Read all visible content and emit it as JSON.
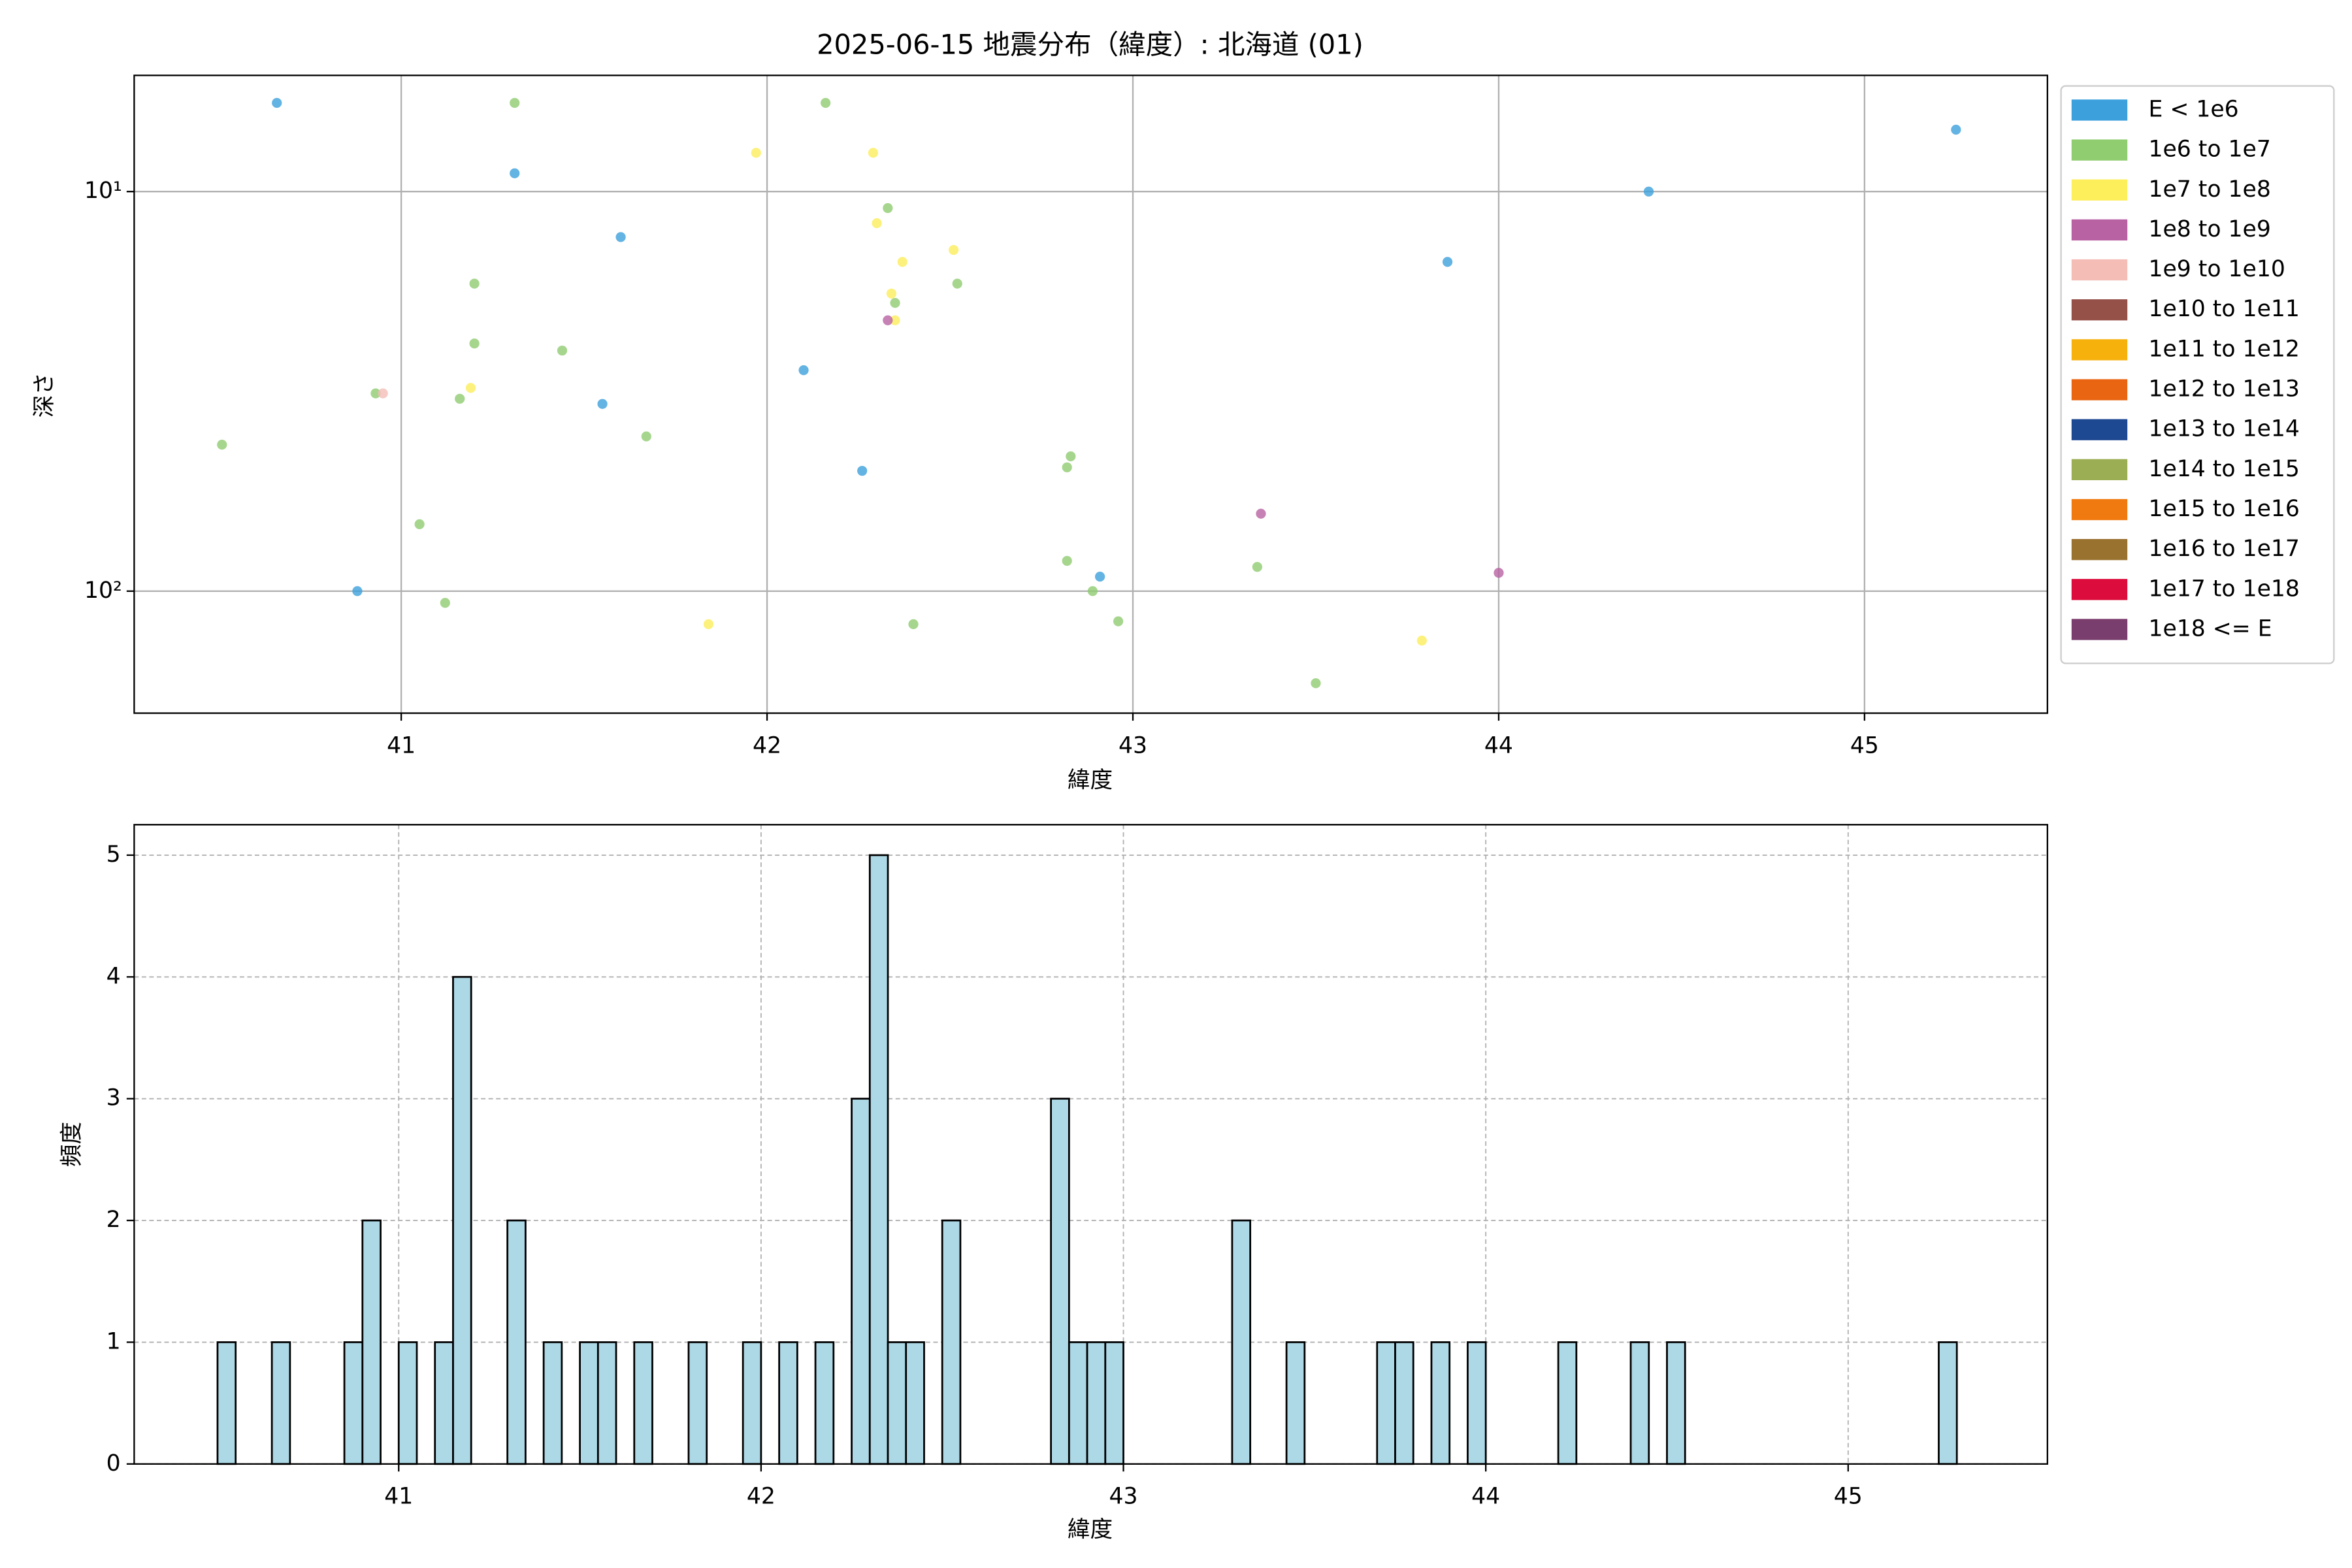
{
  "chart_data": [
    {
      "type": "scatter",
      "title": "2025-06-15 地震分布（緯度）: 北海道 (01)",
      "x_label": "緯度",
      "y_label": "深さ",
      "xlim": [
        40.27,
        45.5
      ],
      "xticks": [
        41,
        42,
        43,
        44,
        45
      ],
      "ylim": [
        5.12,
        202
      ],
      "yscale": "log",
      "invert_y": true,
      "yticks": [
        {
          "value": 10,
          "label": "10¹"
        },
        {
          "value": 100,
          "label": "10²"
        }
      ],
      "grid": true,
      "legend": "outside-right",
      "series": [
        {
          "name": "E < 1e6",
          "color": "#3ca0dc",
          "x": [
            40.66,
            41.31,
            41.6,
            42.1,
            41.55,
            42.26,
            40.88,
            42.91,
            43.86,
            44.41,
            45.25
          ],
          "values": [
            6,
            9,
            13,
            28,
            34,
            50,
            100,
            92,
            15,
            10,
            7
          ]
        },
        {
          "name": "1e6 to 1e7",
          "color": "#90cc70",
          "x": [
            41.31,
            42.16,
            42.33,
            42.35,
            41.2,
            42.52,
            41.2,
            41.44,
            40.93,
            41.16,
            40.51,
            41.67,
            42.83,
            42.82,
            41.05,
            42.82,
            43.34,
            42.89,
            41.12,
            42.4,
            42.96,
            43.5
          ],
          "values": [
            6,
            6,
            11,
            19,
            17,
            17,
            24,
            25,
            32,
            33,
            43,
            41,
            46,
            49,
            68,
            84,
            87,
            100,
            107,
            121,
            119,
            170
          ]
        },
        {
          "name": "1e7 to 1e8",
          "color": "#fdee5c",
          "x": [
            41.97,
            42.29,
            42.3,
            42.37,
            42.51,
            42.34,
            42.35,
            41.19,
            41.84,
            43.79
          ],
          "values": [
            8,
            8,
            12,
            15,
            14,
            18,
            21,
            31,
            121,
            133
          ]
        },
        {
          "name": "1e8 to 1e9",
          "color": "#b862a3",
          "x": [
            42.33,
            43.35,
            44.0
          ],
          "values": [
            21,
            64,
            90
          ]
        },
        {
          "name": "1e9 to 1e10",
          "color": "#f4bdb6",
          "x": [
            40.95
          ],
          "values": [
            32
          ]
        },
        {
          "name": "1e10 to 1e11",
          "color": "#955048",
          "x": [],
          "values": []
        },
        {
          "name": "1e11 to 1e12",
          "color": "#f6b10d",
          "x": [],
          "values": []
        },
        {
          "name": "1e12 to 1e13",
          "color": "#ea6512",
          "x": [],
          "values": []
        },
        {
          "name": "1e13 to 1e14",
          "color": "#1d4892",
          "x": [],
          "values": []
        },
        {
          "name": "1e14 to 1e15",
          "color": "#9cae54",
          "x": [],
          "values": []
        },
        {
          "name": "1e15 to 1e16",
          "color": "#f07a10",
          "x": [],
          "values": []
        },
        {
          "name": "1e16 to 1e17",
          "color": "#9a7230",
          "x": [],
          "values": []
        },
        {
          "name": "1e17 to 1e18",
          "color": "#dc0c3c",
          "x": [],
          "values": []
        },
        {
          "name": "1e18 <= E",
          "color": "#7a3e6e",
          "x": [],
          "values": []
        }
      ]
    },
    {
      "type": "histogram",
      "x_label": "緯度",
      "y_label": "頻度",
      "color": "#add8e6",
      "edgecolor": "#000000",
      "xlim": [
        40.27,
        45.55
      ],
      "xticks": [
        41,
        42,
        43,
        44,
        45
      ],
      "ylim": [
        0,
        5.25
      ],
      "yticks": [
        0,
        1,
        2,
        3,
        4,
        5
      ],
      "grid": true,
      "grid_style": "dashed",
      "bins": [
        40.5,
        40.55,
        40.6,
        40.65,
        40.7,
        40.75,
        40.8,
        40.85,
        40.9,
        40.95,
        41.0,
        41.05,
        41.1,
        41.15,
        41.2,
        41.25,
        41.3,
        41.35,
        41.4,
        41.45,
        41.5,
        41.55,
        41.6,
        41.65,
        41.7,
        41.75,
        41.8,
        41.85,
        41.9,
        41.95,
        42.0,
        42.05,
        42.1,
        42.15,
        42.2,
        42.25,
        42.3,
        42.35,
        42.4,
        42.45,
        42.5,
        42.55,
        42.6,
        42.65,
        42.7,
        42.75,
        42.8,
        42.85,
        42.9,
        42.95,
        43.0,
        43.05,
        43.1,
        43.15,
        43.2,
        43.25,
        43.3,
        43.35,
        43.4,
        43.45,
        43.5,
        43.55,
        43.6,
        43.65,
        43.7,
        43.75,
        43.8,
        43.85,
        43.9,
        43.95,
        44.0,
        44.05,
        44.1,
        44.15,
        44.2,
        44.25,
        44.3,
        44.35,
        44.4,
        44.45,
        44.5,
        44.55,
        44.6,
        44.65,
        44.7,
        44.75,
        44.8,
        44.85,
        44.9,
        44.95,
        45.0,
        45.05,
        45.1,
        45.15,
        45.2,
        45.25,
        45.3
      ],
      "values": [
        1,
        0,
        0,
        1,
        0,
        0,
        0,
        1,
        2,
        0,
        1,
        0,
        1,
        4,
        0,
        0,
        2,
        0,
        1,
        0,
        1,
        1,
        0,
        1,
        0,
        0,
        1,
        0,
        0,
        1,
        0,
        1,
        0,
        1,
        0,
        3,
        5,
        1,
        1,
        0,
        2,
        0,
        0,
        0,
        0,
        0,
        3,
        1,
        1,
        1,
        0,
        0,
        0,
        0,
        0,
        0,
        2,
        0,
        0,
        1,
        0,
        0,
        0,
        0,
        1,
        1,
        0,
        1,
        0,
        1,
        0,
        0,
        0,
        0,
        1,
        0,
        0,
        0,
        1,
        0,
        1,
        0,
        0,
        0,
        0,
        0,
        0,
        0,
        0,
        0,
        0,
        0,
        0,
        0,
        0,
        1
      ]
    }
  ]
}
